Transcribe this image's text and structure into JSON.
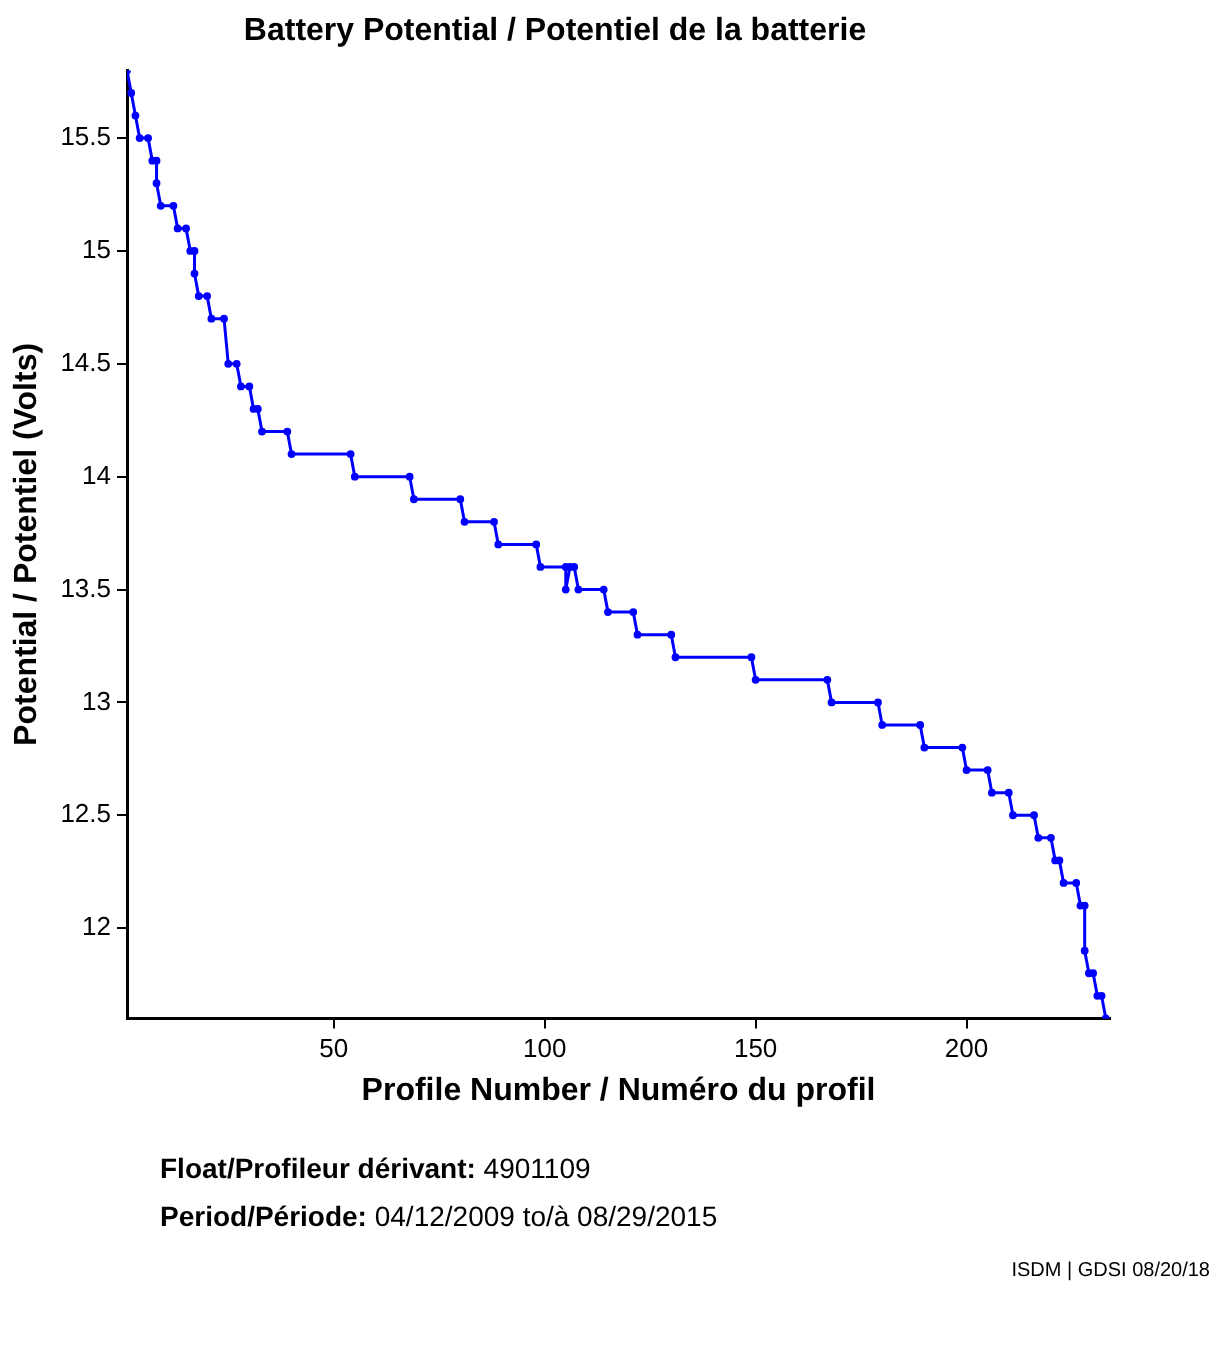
{
  "chart_data": {
    "type": "line",
    "title": "Battery Potential / Potentiel de la batterie",
    "xlabel": "Profile Number / Numéro du profil",
    "ylabel": "Potential / Potentiel (Volts)",
    "series": [
      {
        "color": "#0000ff",
        "x": [
          1,
          2,
          3,
          4,
          6,
          7,
          8,
          8,
          9,
          12,
          13,
          15,
          16,
          17,
          17,
          18,
          20,
          21,
          24,
          25,
          27,
          28,
          30,
          31,
          32,
          33,
          39,
          40,
          54,
          55,
          68,
          69,
          80,
          81,
          88,
          89,
          98,
          99,
          105,
          105,
          106,
          107,
          108,
          114,
          115,
          121,
          122,
          130,
          131,
          149,
          150,
          167,
          168,
          179,
          180,
          189,
          190,
          199,
          200,
          205,
          206,
          210,
          211,
          216,
          217,
          220,
          221,
          222,
          223,
          226,
          227,
          228,
          228,
          229,
          230,
          231,
          232,
          233
        ],
        "values": [
          15.8,
          15.7,
          15.6,
          15.5,
          15.5,
          15.4,
          15.4,
          15.3,
          15.2,
          15.2,
          15.1,
          15.1,
          15.0,
          15.0,
          14.9,
          14.8,
          14.8,
          14.7,
          14.7,
          14.5,
          14.5,
          14.4,
          14.4,
          14.3,
          14.3,
          14.2,
          14.2,
          14.1,
          14.1,
          14.0,
          14.0,
          13.9,
          13.9,
          13.8,
          13.8,
          13.7,
          13.7,
          13.6,
          13.6,
          13.5,
          13.6,
          13.6,
          13.5,
          13.5,
          13.4,
          13.4,
          13.3,
          13.3,
          13.2,
          13.2,
          13.1,
          13.1,
          13.0,
          13.0,
          12.9,
          12.9,
          12.8,
          12.8,
          12.7,
          12.7,
          12.6,
          12.6,
          12.5,
          12.5,
          12.4,
          12.4,
          12.3,
          12.3,
          12.2,
          12.2,
          12.1,
          12.1,
          11.9,
          11.8,
          11.8,
          11.7,
          11.7,
          11.6
        ]
      }
    ],
    "xlim": [
      1,
      234
    ],
    "xticks": [
      50,
      100,
      150,
      200
    ],
    "ylim": [
      11.6,
      15.8
    ],
    "yticks": [
      12,
      12.5,
      13,
      13.5,
      14,
      14.5,
      15,
      15.5
    ],
    "marker": "circle",
    "line_style": "solid",
    "grid": false,
    "legend": false,
    "annotations": [
      "Float/Profileur dérivant: 4901109",
      "Period/Période: 04/12/2009 to/à 08/29/2015",
      "ISDM | GDSI 08/20/18"
    ]
  }
}
